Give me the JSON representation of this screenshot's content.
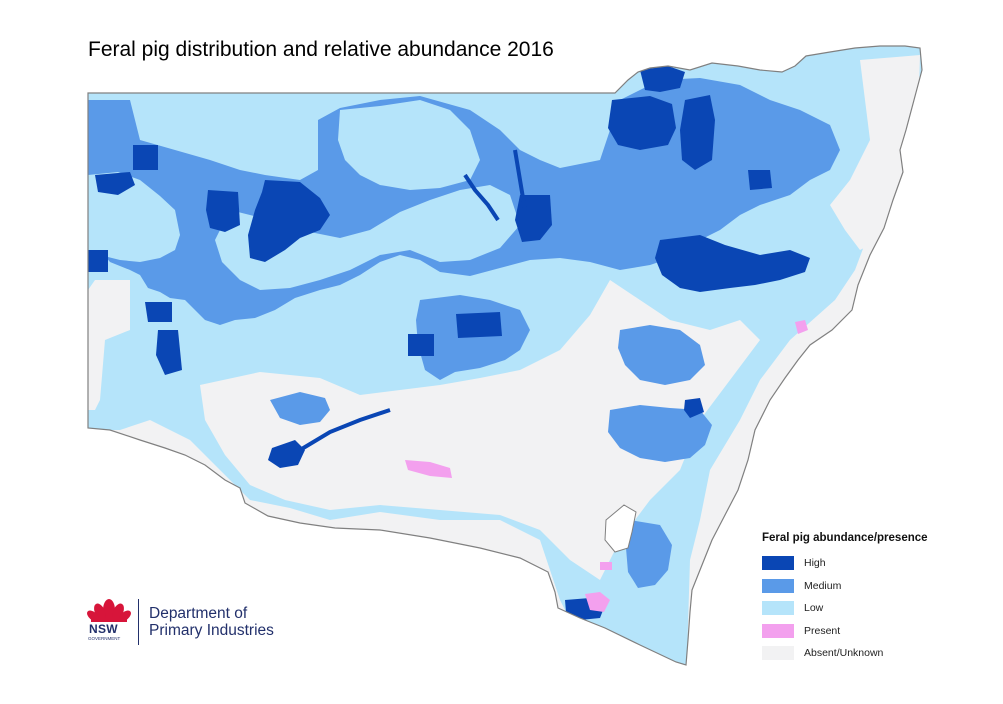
{
  "title": "Feral pig distribution and relative abundance 2016",
  "legend": {
    "title": "Feral pig abundance/presence",
    "items": [
      {
        "label": "High",
        "color": "#0a46b4"
      },
      {
        "label": "Medium",
        "color": "#5a9ae8"
      },
      {
        "label": "Low",
        "color": "#b5e4fa"
      },
      {
        "label": "Present",
        "color": "#f3a0ee"
      },
      {
        "label": "Absent/Unknown",
        "color": "#f2f2f3"
      }
    ]
  },
  "colors": {
    "high": "#0a46b4",
    "medium": "#5a9ae8",
    "low": "#b5e4fa",
    "present": "#f3a0ee",
    "absent": "#f2f2f3",
    "border": "#808080",
    "logo_red": "#d7153a",
    "logo_navy": "#22306b"
  },
  "logo": {
    "mark_text": "NSW",
    "mark_subtext": "GOVERNMENT",
    "line1": "Department of",
    "line2": "Primary Industries"
  }
}
